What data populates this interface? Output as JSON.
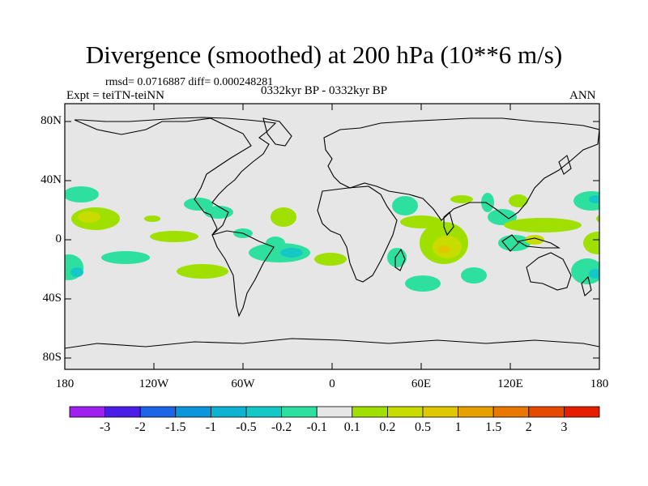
{
  "title": "Divergence (smoothed) at 200 hPa (10**6 m/s)",
  "stats": "rmsd= 0.0716887 diff= 0.000248281",
  "experiment": "Expt = teiTN-teiNN",
  "period": "0332kyr BP - 0332kyr BP",
  "season": "ANN",
  "map": {
    "lat_labels": [
      "80N",
      "40N",
      "0",
      "40S",
      "80S"
    ],
    "lon_labels": [
      "180",
      "120W",
      "60W",
      "0",
      "60E",
      "120E",
      "180"
    ],
    "background_color": "#e6e6e6"
  },
  "colorbar": {
    "labels": [
      "-3",
      "-2",
      "-1.5",
      "-1",
      "-0.5",
      "-0.2",
      "-0.1",
      "0.1",
      "0.2",
      "0.5",
      "1",
      "1.5",
      "2",
      "3"
    ],
    "colors": [
      "#a020f0",
      "#4b1ee8",
      "#1e64e6",
      "#0b96dc",
      "#0cb4d2",
      "#14c8c8",
      "#2ee0a0",
      "#e6e6e6",
      "#a0e000",
      "#c8dc00",
      "#e0c800",
      "#e6a000",
      "#e87800",
      "#e64a00",
      "#e61e00"
    ]
  }
}
